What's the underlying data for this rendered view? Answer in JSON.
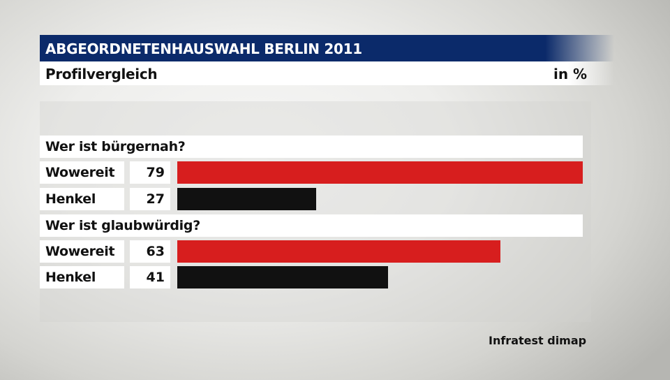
{
  "header": {
    "title": "ABGEORDNETENHAUSWAHL BERLIN 2011",
    "subtitle": "Profilvergleich",
    "unit": "in %"
  },
  "source": "Infratest dimap",
  "colors": {
    "title_bg": "#0b2a6a",
    "wowereit": "#d71e1e",
    "henkel": "#111111"
  },
  "chart_data": {
    "type": "bar",
    "orientation": "horizontal",
    "xlim": [
      0,
      79
    ],
    "groups": [
      {
        "question": "Wer ist bürgernah?",
        "rows": [
          {
            "name": "Wowereit",
            "value": 79,
            "color": "#d71e1e"
          },
          {
            "name": "Henkel",
            "value": 27,
            "color": "#111111"
          }
        ]
      },
      {
        "question": "Wer ist glaubwürdig?",
        "rows": [
          {
            "name": "Wowereit",
            "value": 63,
            "color": "#d71e1e"
          },
          {
            "name": "Henkel",
            "value": 41,
            "color": "#111111"
          }
        ]
      }
    ]
  }
}
